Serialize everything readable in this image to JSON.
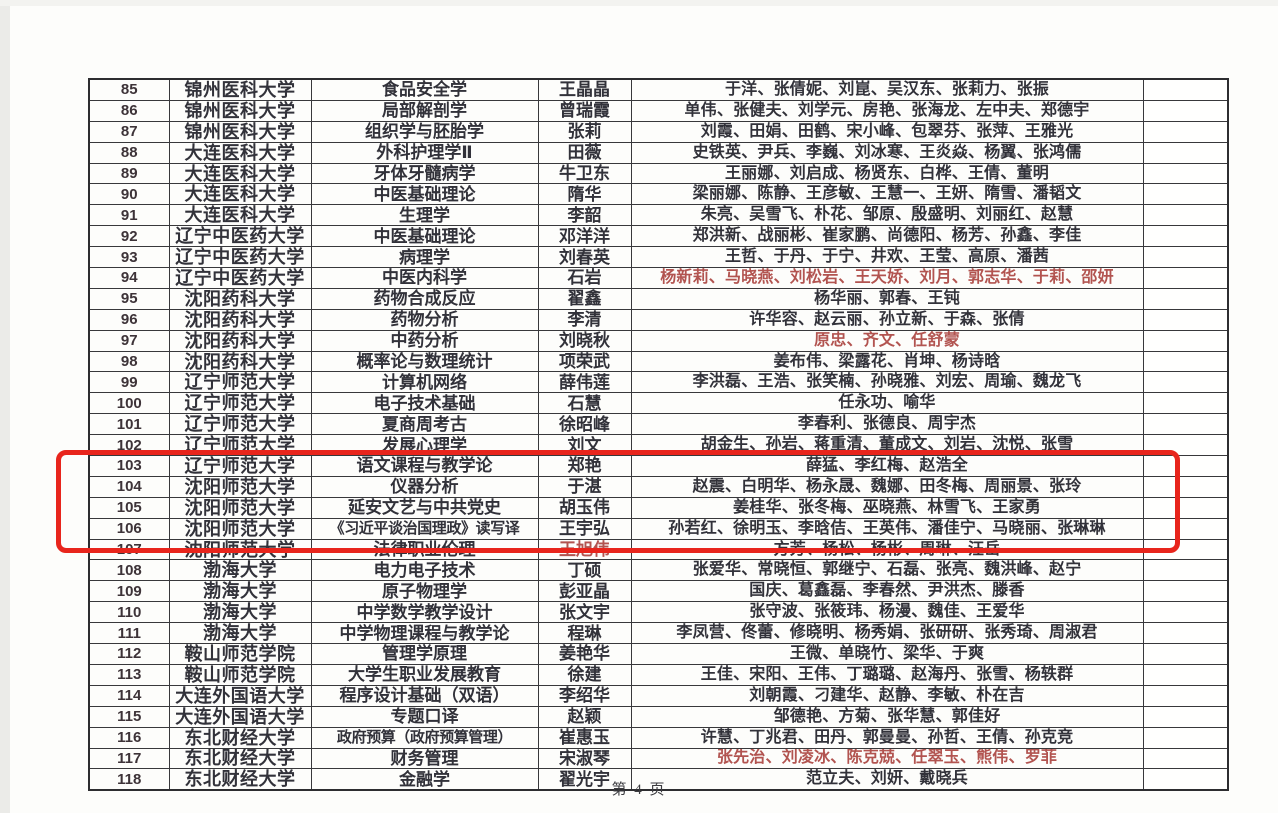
{
  "page": {
    "footer": "第 4 页"
  },
  "highlight": {
    "color": "#e8251c",
    "first_row_no": "104",
    "last_row_no": "107"
  },
  "colors": {
    "ink": "#32323a",
    "red_text": "#b25450",
    "border": "#38383b"
  },
  "table": {
    "rows": [
      {
        "no": "85",
        "university": "锦州医科大学",
        "course": "食品安全学",
        "leader": "王晶晶",
        "members": "于洋、张倩妮、刘崑、吴汉东、张莉力、张振"
      },
      {
        "no": "86",
        "university": "锦州医科大学",
        "course": "局部解剖学",
        "leader": "曾瑞霞",
        "members": "单伟、张健夫、刘学元、房艳、张海龙、左中夫、郑德宇"
      },
      {
        "no": "87",
        "university": "锦州医科大学",
        "course": "组织学与胚胎学",
        "leader": "张莉",
        "members": "刘霞、田娟、田鹤、宋小峰、包翠芬、张萍、王雅光"
      },
      {
        "no": "88",
        "university": "大连医科大学",
        "course": "外科护理学Ⅱ",
        "leader": "田薇",
        "members": "史铁英、尹兵、李巍、刘冰寒、王炎焱、杨翼、张鸿儒"
      },
      {
        "no": "89",
        "university": "大连医科大学",
        "course": "牙体牙髓病学",
        "leader": "牛卫东",
        "members": "王丽娜、刘启成、杨贤东、白桦、王倩、董明"
      },
      {
        "no": "90",
        "university": "大连医科大学",
        "course": "中医基础理论",
        "leader": "隋华",
        "members": "梁丽娜、陈静、王彦敏、王慧一、王妍、隋雪、潘韬文"
      },
      {
        "no": "91",
        "university": "大连医科大学",
        "course": "生理学",
        "leader": "李韶",
        "members": "朱亮、吴雪飞、朴花、邹原、殷盛明、刘丽红、赵慧"
      },
      {
        "no": "92",
        "university": "辽宁中医药大学",
        "course": "中医基础理论",
        "leader": "邓洋洋",
        "members": "郑洪新、战丽彬、崔家鹏、尚德阳、杨芳、孙鑫、李佳"
      },
      {
        "no": "93",
        "university": "辽宁中医药大学",
        "course": "病理学",
        "leader": "刘春英",
        "members": "王哲、于丹、于宁、井欢、王莹、高原、潘茜"
      },
      {
        "no": "94",
        "university": "辽宁中医药大学",
        "course": "中医内科学",
        "leader": "石岩",
        "members": "杨新莉、马晓燕、刘松岩、王天娇、刘月、郭志华、于莉、邵妍",
        "members_red": true
      },
      {
        "no": "95",
        "university": "沈阳药科大学",
        "course": "药物合成反应",
        "leader": "翟鑫",
        "members": "杨华丽、郭春、王钝"
      },
      {
        "no": "96",
        "university": "沈阳药科大学",
        "course": "药物分析",
        "leader": "李清",
        "members": "许华容、赵云丽、孙立新、于森、张倩"
      },
      {
        "no": "97",
        "university": "沈阳药科大学",
        "course": "中药分析",
        "leader": "刘晓秋",
        "members": "原忠、齐文、任舒蒙",
        "members_red": true
      },
      {
        "no": "98",
        "university": "沈阳药科大学",
        "course": "概率论与数理统计",
        "leader": "项荣武",
        "members": "姜布伟、梁露花、肖坤、杨诗晗"
      },
      {
        "no": "99",
        "university": "辽宁师范大学",
        "course": "计算机网络",
        "leader": "薛伟莲",
        "members": "李洪磊、王浩、张笑楠、孙晓雅、刘宏、周瑜、魏龙飞"
      },
      {
        "no": "100",
        "university": "辽宁师范大学",
        "course": "电子技术基础",
        "leader": "石慧",
        "members": "任永功、喻华"
      },
      {
        "no": "101",
        "university": "辽宁师范大学",
        "course": "夏商周考古",
        "leader": "徐昭峰",
        "members": "李春利、张德良、周宇杰"
      },
      {
        "no": "102",
        "university": "辽宁师范大学",
        "course": "发展心理学",
        "leader": "刘文",
        "members": "胡金生、孙岩、蒋重清、董成文、刘岩、沈悦、张雪"
      },
      {
        "no": "103",
        "university": "辽宁师范大学",
        "course": "语文课程与教学论",
        "leader": "郑艳",
        "members": "薛猛、李红梅、赵浩全"
      },
      {
        "no": "104",
        "university": "沈阳师范大学",
        "course": "仪器分析",
        "leader": "于湛",
        "members": "赵震、白明华、杨永晟、魏娜、田冬梅、周丽景、张玲"
      },
      {
        "no": "105",
        "university": "沈阳师范大学",
        "course": "延安文艺与中共党史",
        "leader": "胡玉伟",
        "members": "姜桂华、张冬梅、巫晓燕、林雪飞、王家勇"
      },
      {
        "no": "106",
        "university": "沈阳师范大学",
        "course": "《习近平谈治国理政》读写译",
        "leader": "王宇弘",
        "members": "孙若红、徐明玉、李晗佶、王英伟、潘佳宁、马晓丽、张琳琳"
      },
      {
        "no": "107",
        "university": "沈阳师范大学",
        "course": "法律职业伦理",
        "leader": "王旭伟",
        "leader_red": true,
        "members": "方芳、杨松、杨彬、周琳、汪岳"
      },
      {
        "no": "108",
        "university": "渤海大学",
        "course": "电力电子技术",
        "leader": "丁硕",
        "members": "张爱华、常晓恒、郭继宁、石磊、张亮、魏洪峰、赵宁"
      },
      {
        "no": "109",
        "university": "渤海大学",
        "course": "原子物理学",
        "leader": "彭亚晶",
        "members": "国庆、葛鑫磊、李春然、尹洪杰、滕香"
      },
      {
        "no": "110",
        "university": "渤海大学",
        "course": "中学数学教学设计",
        "leader": "张文宇",
        "members": "张守波、张筱玮、杨漫、魏佳、王爱华"
      },
      {
        "no": "111",
        "university": "渤海大学",
        "course": "中学物理课程与教学论",
        "leader": "程琳",
        "members": "李凤营、佟蕾、修晓明、杨秀娟、张研研、张秀琦、周淑君"
      },
      {
        "no": "112",
        "university": "鞍山师范学院",
        "course": "管理学原理",
        "leader": "姜艳华",
        "members": "王微、单晓竹、梁华、于爽"
      },
      {
        "no": "113",
        "university": "鞍山师范学院",
        "course": "大学生职业发展教育",
        "leader": "徐建",
        "members": "王佳、宋阳、王伟、丁璐璐、赵海丹、张雪、杨轶群"
      },
      {
        "no": "114",
        "university": "大连外国语大学",
        "course": "程序设计基础（双语）",
        "leader": "李绍华",
        "members": "刘朝霞、刁建华、赵静、李敏、朴在吉"
      },
      {
        "no": "115",
        "university": "大连外国语大学",
        "course": "专题口译",
        "leader": "赵颖",
        "members": "邹德艳、方菊、张华慧、郭佳好"
      },
      {
        "no": "116",
        "university": "东北财经大学",
        "course": "政府预算（政府预算管理）",
        "leader": "崔惠玉",
        "members": "许慧、丁兆君、田丹、郭曼曼、孙哲、王倩、孙克竞"
      },
      {
        "no": "117",
        "university": "东北财经大学",
        "course": "财务管理",
        "leader": "宋淑琴",
        "members": "张先治、刘凌冰、陈克兢、任翠玉、熊伟、罗菲",
        "members_red": true
      },
      {
        "no": "118",
        "university": "东北财经大学",
        "course": "金融学",
        "leader": "翟光宇",
        "members": "范立夫、刘妍、戴晓兵"
      }
    ]
  }
}
